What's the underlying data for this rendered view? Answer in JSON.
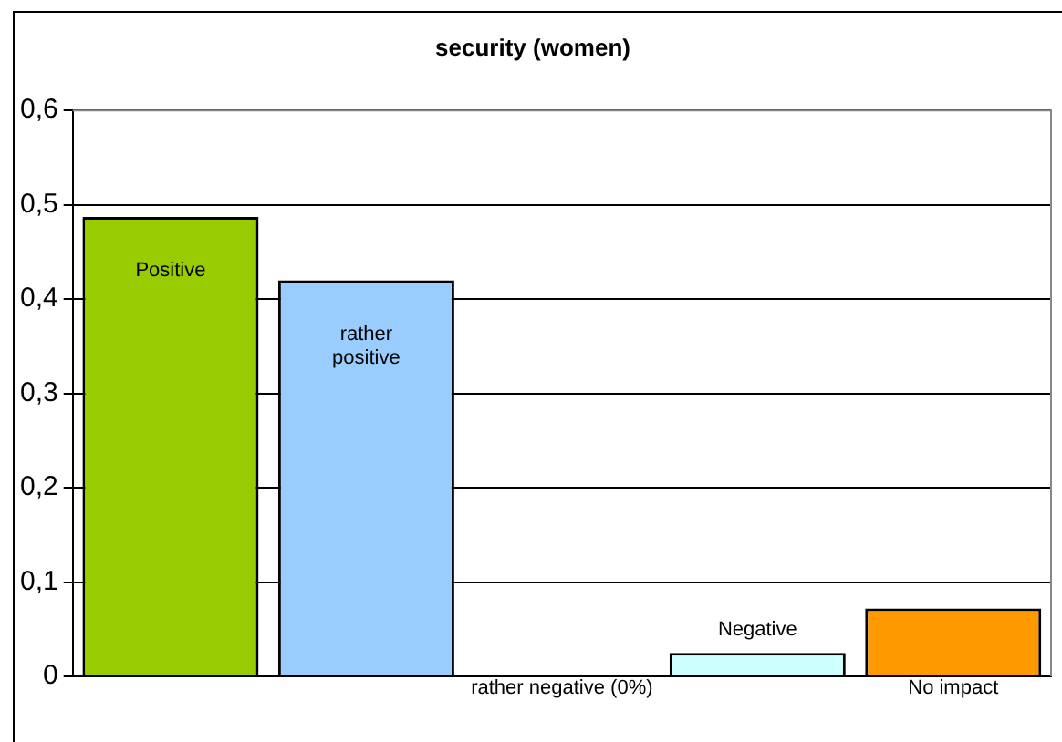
{
  "chart_data": {
    "type": "bar",
    "title": "security (women)",
    "categories": [
      "Positive",
      "rather positive",
      "rather negative (0%)",
      "Negative",
      "No impact"
    ],
    "values": [
      0.487,
      0.42,
      0,
      0.025,
      0.072
    ],
    "colors": [
      "#99cc00",
      "#99ccff",
      "#ccffff",
      "#ccffff",
      "#ff9900"
    ],
    "ylim": [
      0,
      0.6
    ],
    "yticks": [
      {
        "value": 0,
        "label": "0"
      },
      {
        "value": 0.1,
        "label": "0,1"
      },
      {
        "value": 0.2,
        "label": "0,2"
      },
      {
        "value": 0.3,
        "label": "0,3"
      },
      {
        "value": 0.4,
        "label": "0,4"
      },
      {
        "value": 0.5,
        "label": "0,5"
      },
      {
        "value": 0.6,
        "label": "0,6"
      }
    ],
    "grid": "y",
    "legend": false
  }
}
